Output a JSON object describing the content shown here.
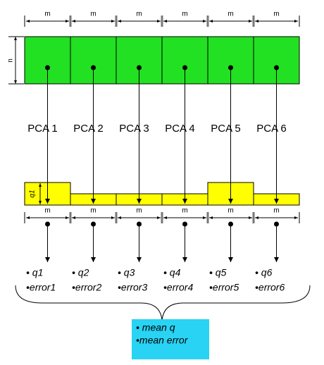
{
  "top_dimensions": [
    "m",
    "m",
    "m",
    "m",
    "m",
    "m"
  ],
  "side_dimension": "n",
  "components": [
    "PCA 1",
    "PCA 2",
    "PCA 3",
    "PCA 4",
    "PCA 5",
    "PCA 6"
  ],
  "height_label": "q1",
  "bottom_dimensions": [
    "m",
    "m",
    "m",
    "m",
    "m",
    "m"
  ],
  "results": [
    {
      "q": "• q1",
      "error": "•error1"
    },
    {
      "q": "• q2",
      "error": "•error2"
    },
    {
      "q": "• q3",
      "error": "•error3"
    },
    {
      "q": "• q4",
      "error": "•error4"
    },
    {
      "q": "• q5",
      "error": "•error5"
    },
    {
      "q": "• q6",
      "error": "•error6"
    }
  ],
  "summary": [
    "• mean q",
    "•mean error"
  ]
}
